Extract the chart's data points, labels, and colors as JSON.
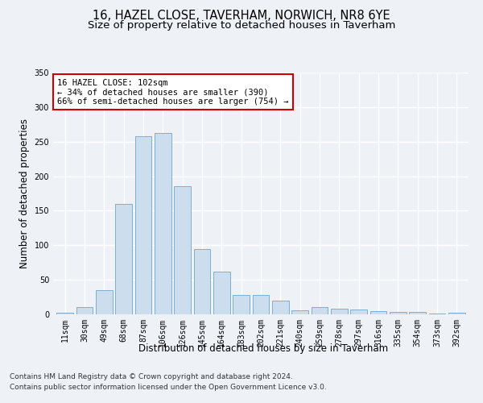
{
  "title1": "16, HAZEL CLOSE, TAVERHAM, NORWICH, NR8 6YE",
  "title2": "Size of property relative to detached houses in Taverham",
  "xlabel": "Distribution of detached houses by size in Taverham",
  "ylabel": "Number of detached properties",
  "categories": [
    "11sqm",
    "30sqm",
    "49sqm",
    "68sqm",
    "87sqm",
    "106sqm",
    "126sqm",
    "145sqm",
    "164sqm",
    "183sqm",
    "202sqm",
    "221sqm",
    "240sqm",
    "259sqm",
    "278sqm",
    "297sqm",
    "316sqm",
    "335sqm",
    "354sqm",
    "373sqm",
    "392sqm"
  ],
  "values": [
    2,
    10,
    35,
    160,
    258,
    263,
    185,
    95,
    62,
    28,
    28,
    20,
    6,
    10,
    8,
    7,
    5,
    4,
    3,
    1,
    2
  ],
  "bar_color": "#ccdded",
  "bar_edge_color": "#7bafd4",
  "annotation_title": "16 HAZEL CLOSE: 102sqm",
  "annotation_line1": "← 34% of detached houses are smaller (390)",
  "annotation_line2": "66% of semi-detached houses are larger (754) →",
  "annotation_box_color": "#ffffff",
  "annotation_border_color": "#cc0000",
  "ylim": [
    0,
    350
  ],
  "yticks": [
    0,
    50,
    100,
    150,
    200,
    250,
    300,
    350
  ],
  "footnote1": "Contains HM Land Registry data © Crown copyright and database right 2024.",
  "footnote2": "Contains public sector information licensed under the Open Government Licence v3.0.",
  "bg_color": "#eef2f7",
  "plot_bg_color": "#eef2f7",
  "grid_color": "#ffffff",
  "title1_fontsize": 10.5,
  "title2_fontsize": 9.5,
  "axis_label_fontsize": 8.5,
  "tick_fontsize": 7,
  "footnote_fontsize": 6.5,
  "ann_fontsize": 7.5
}
